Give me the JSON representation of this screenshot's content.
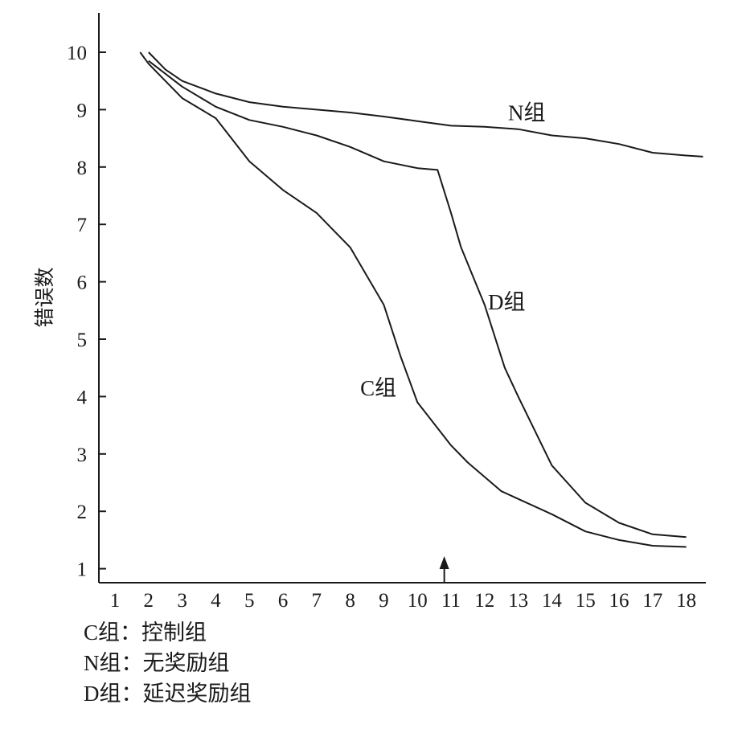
{
  "chart_data": {
    "type": "line",
    "title": "",
    "xlabel": "",
    "ylabel": "错误数",
    "xlim": [
      0.5,
      18.5
    ],
    "ylim": [
      1,
      10.5
    ],
    "x_ticks": [
      "1",
      "2",
      "3",
      "4",
      "5",
      "6",
      "7",
      "8",
      "9",
      "10",
      "11",
      "12",
      "13",
      "14",
      "15",
      "16",
      "17",
      "18"
    ],
    "y_ticks": [
      "1",
      "2",
      "3",
      "4",
      "5",
      "6",
      "7",
      "8",
      "9",
      "10"
    ],
    "grid": false,
    "marker_x": 10.8,
    "series": [
      {
        "name": "N组",
        "points": [
          [
            2.0,
            10.0
          ],
          [
            2.5,
            9.7
          ],
          [
            3,
            9.5
          ],
          [
            4,
            9.28
          ],
          [
            5,
            9.13
          ],
          [
            6,
            9.05
          ],
          [
            7,
            9.0
          ],
          [
            8,
            8.95
          ],
          [
            9,
            8.88
          ],
          [
            10,
            8.8
          ],
          [
            11,
            8.72
          ],
          [
            12,
            8.7
          ],
          [
            13,
            8.66
          ],
          [
            14,
            8.55
          ],
          [
            15,
            8.5
          ],
          [
            16,
            8.4
          ],
          [
            17,
            8.25
          ],
          [
            18,
            8.2
          ],
          [
            18.5,
            8.18
          ]
        ]
      },
      {
        "name": "D组",
        "points": [
          [
            2.0,
            9.85
          ],
          [
            3,
            9.4
          ],
          [
            4,
            9.05
          ],
          [
            5,
            8.82
          ],
          [
            6,
            8.7
          ],
          [
            7,
            8.55
          ],
          [
            8,
            8.35
          ],
          [
            9,
            8.1
          ],
          [
            10,
            7.98
          ],
          [
            10.6,
            7.95
          ],
          [
            11,
            7.2
          ],
          [
            11.3,
            6.6
          ],
          [
            12,
            5.6
          ],
          [
            12.6,
            4.5
          ],
          [
            13,
            4.0
          ],
          [
            14,
            2.8
          ],
          [
            15,
            2.15
          ],
          [
            16,
            1.8
          ],
          [
            17,
            1.6
          ],
          [
            18,
            1.55
          ]
        ]
      },
      {
        "name": "C组",
        "points": [
          [
            1.75,
            10.0
          ],
          [
            2,
            9.8
          ],
          [
            3,
            9.2
          ],
          [
            4,
            8.85
          ],
          [
            5,
            8.1
          ],
          [
            6,
            7.6
          ],
          [
            7,
            7.2
          ],
          [
            8,
            6.6
          ],
          [
            8.8,
            5.8
          ],
          [
            9,
            5.6
          ],
          [
            9.5,
            4.7
          ],
          [
            10,
            3.9
          ],
          [
            11,
            3.15
          ],
          [
            11.5,
            2.85
          ],
          [
            12,
            2.6
          ],
          [
            12.5,
            2.35
          ],
          [
            14,
            1.95
          ],
          [
            15,
            1.65
          ],
          [
            16,
            1.5
          ],
          [
            17,
            1.4
          ],
          [
            18,
            1.38
          ]
        ]
      }
    ]
  },
  "legend": [
    {
      "code": "C组",
      "sep": "：",
      "desc": "控制组"
    },
    {
      "code": "N组",
      "sep": "：",
      "desc": "无奖励组"
    },
    {
      "code": "D组",
      "sep": "：",
      "desc": "延迟奖励组"
    }
  ]
}
